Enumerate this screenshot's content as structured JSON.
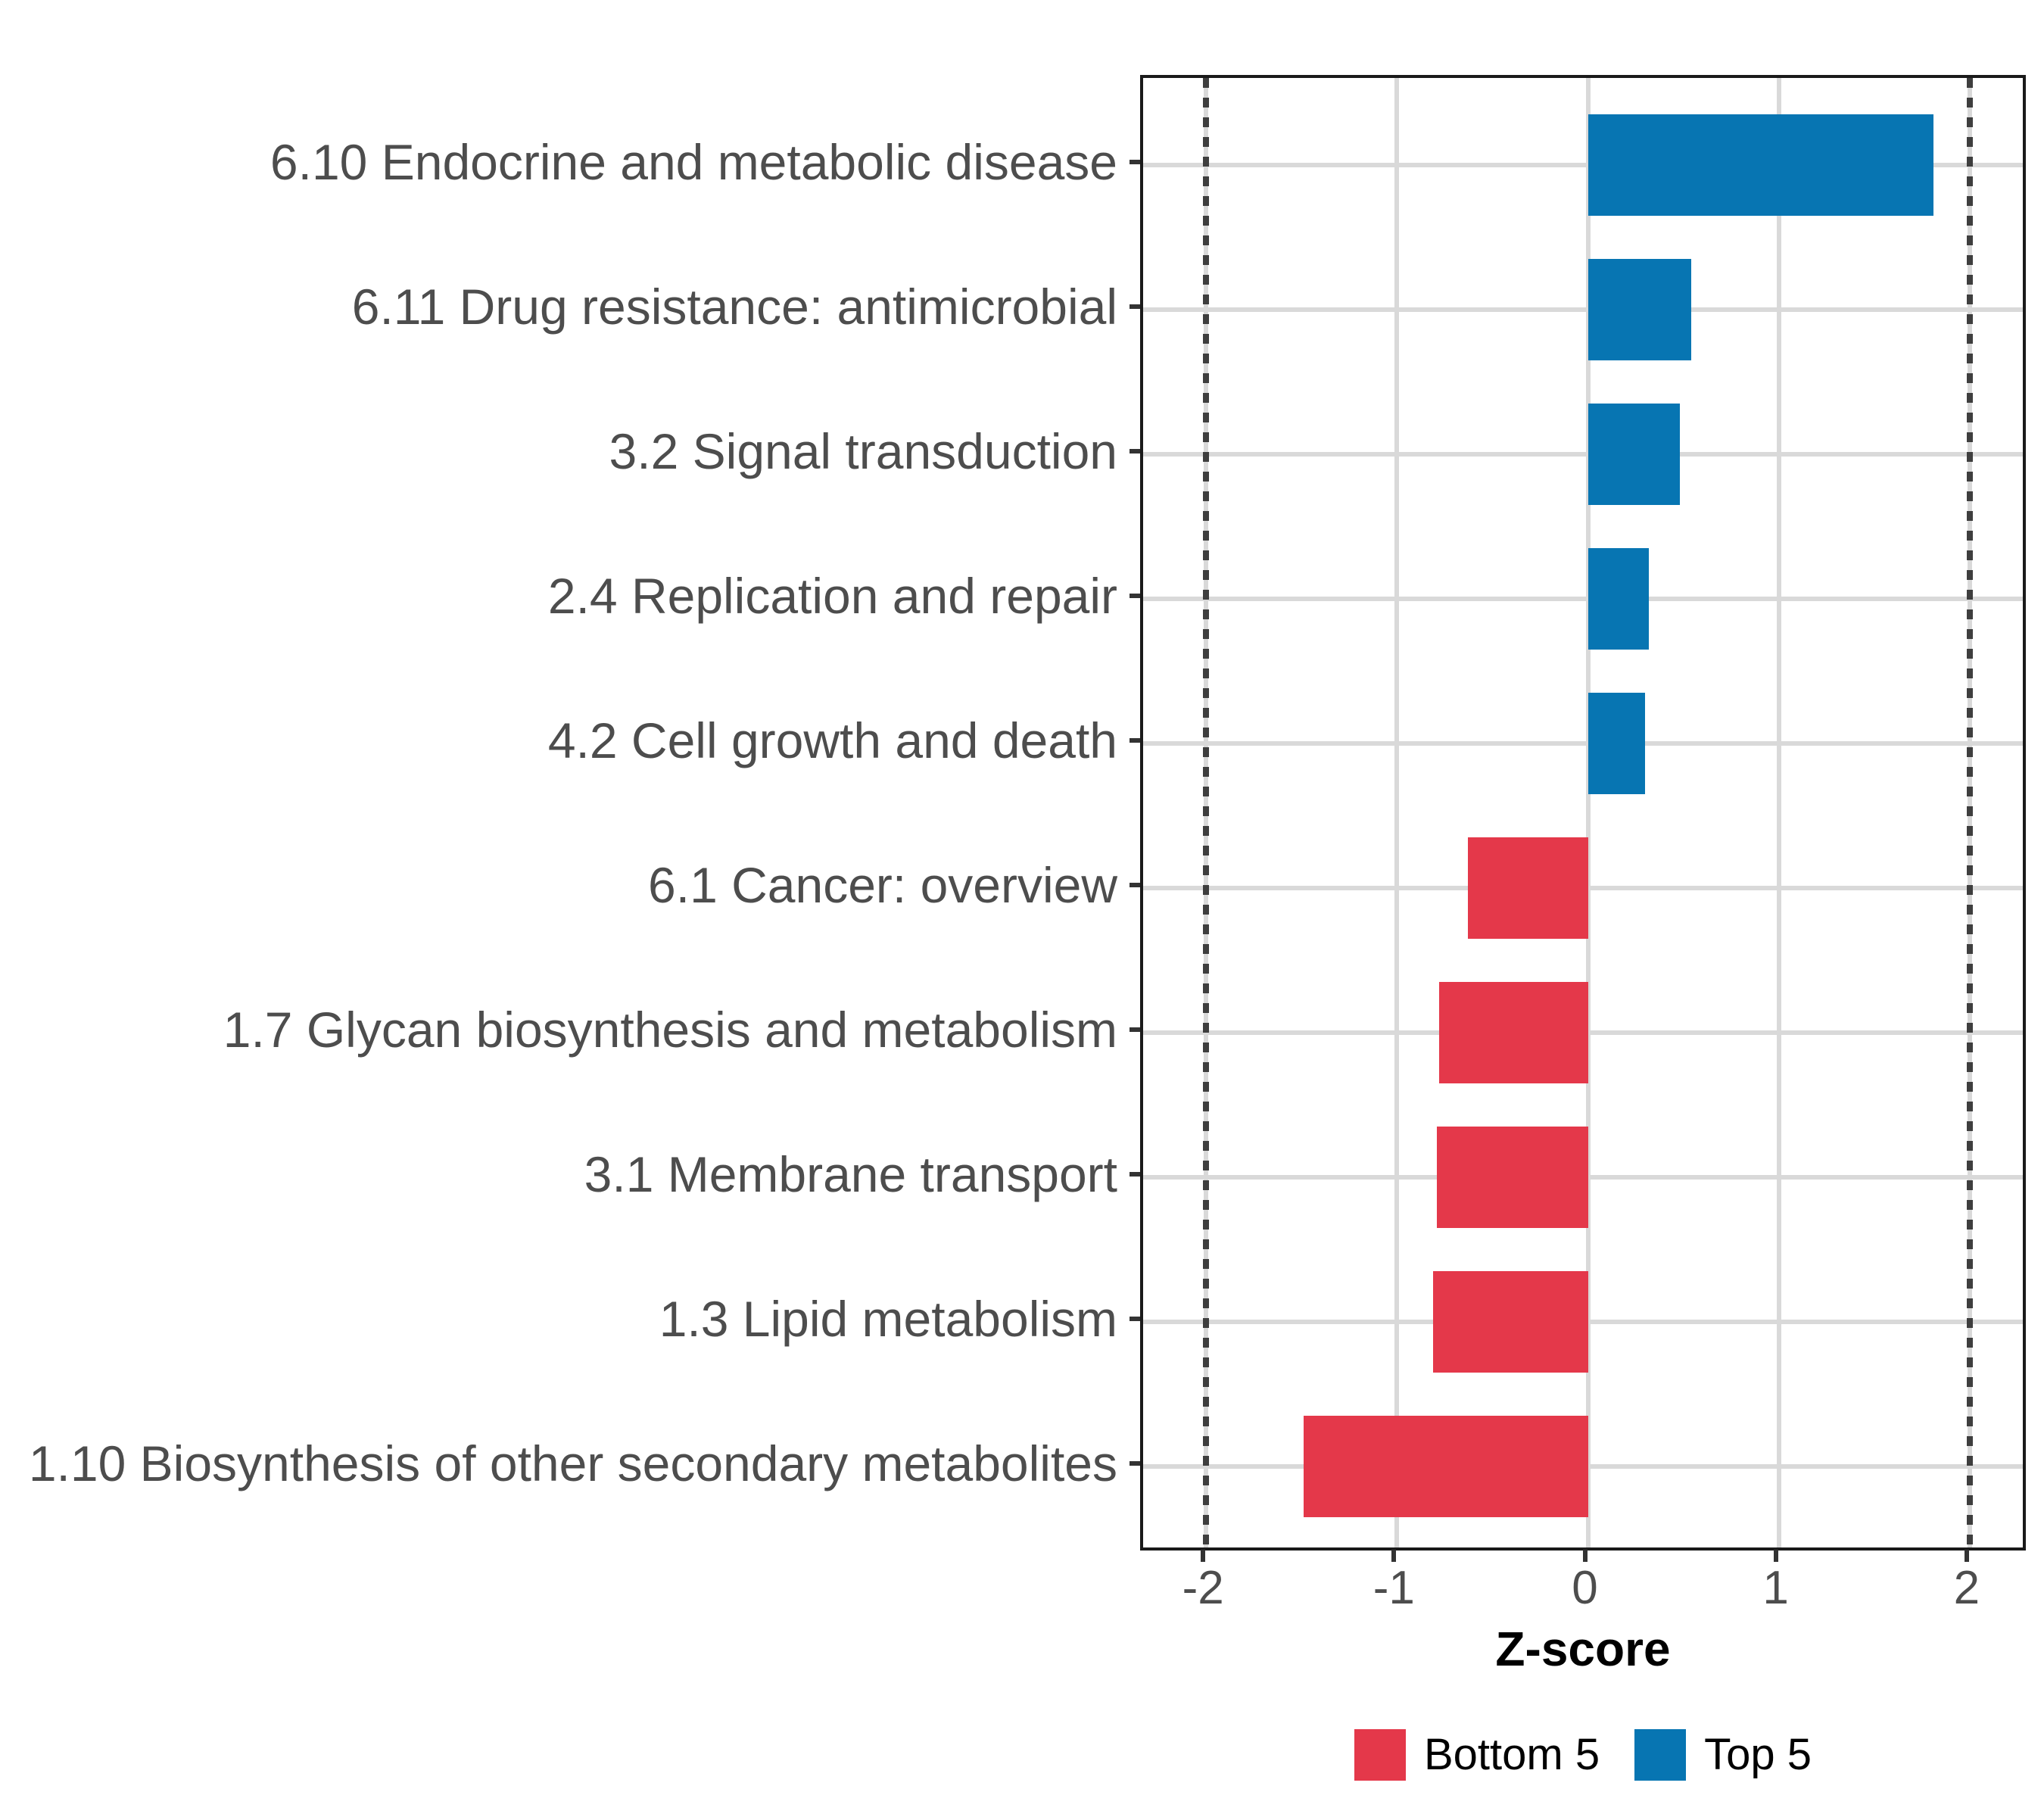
{
  "chart_data": {
    "type": "bar",
    "orientation": "horizontal",
    "title": "",
    "xlabel": "Z-score",
    "ylabel": "",
    "categories": [
      "6.10 Endocrine and metabolic disease",
      "6.11 Drug resistance: antimicrobial",
      "3.2 Signal transduction",
      "2.4 Replication and repair",
      "4.2 Cell growth and death",
      "6.1 Cancer: overview",
      "1.7 Glycan biosynthesis and metabolism",
      "3.1 Membrane transport",
      "1.3 Lipid metabolism",
      "1.10 Biosynthesis of other secondary metabolites"
    ],
    "values": [
      1.81,
      0.54,
      0.48,
      0.32,
      0.3,
      -0.63,
      -0.78,
      -0.79,
      -0.81,
      -1.49
    ],
    "groups": [
      "Top 5",
      "Top 5",
      "Top 5",
      "Top 5",
      "Top 5",
      "Bottom 5",
      "Bottom 5",
      "Bottom 5",
      "Bottom 5",
      "Bottom 5"
    ],
    "group_colors": {
      "Top 5": "#0775B2",
      "Bottom 5": "#E4384A"
    },
    "legend": [
      {
        "label": "Bottom 5",
        "color": "#E4384A"
      },
      {
        "label": "Top 5",
        "color": "#0775B2"
      }
    ],
    "legend_position": "bottom",
    "x_ticks": [
      -2,
      -1,
      0,
      1,
      2
    ],
    "x_tick_labels": [
      "-2",
      "-1",
      "0",
      "1",
      "2"
    ],
    "xlim": [
      -2.33,
      2.31
    ],
    "reference_lines": [
      -2,
      2
    ],
    "grid": true,
    "bar_width_fraction": 0.7
  },
  "style_colors": {
    "bar_blue": "#0775B2",
    "bar_red": "#E4384A",
    "gridline": "#d9d9d9",
    "reference_line": "#3e3e3e",
    "axis_text": "#4d4d4d",
    "panel_border": "#1a1a1a"
  }
}
